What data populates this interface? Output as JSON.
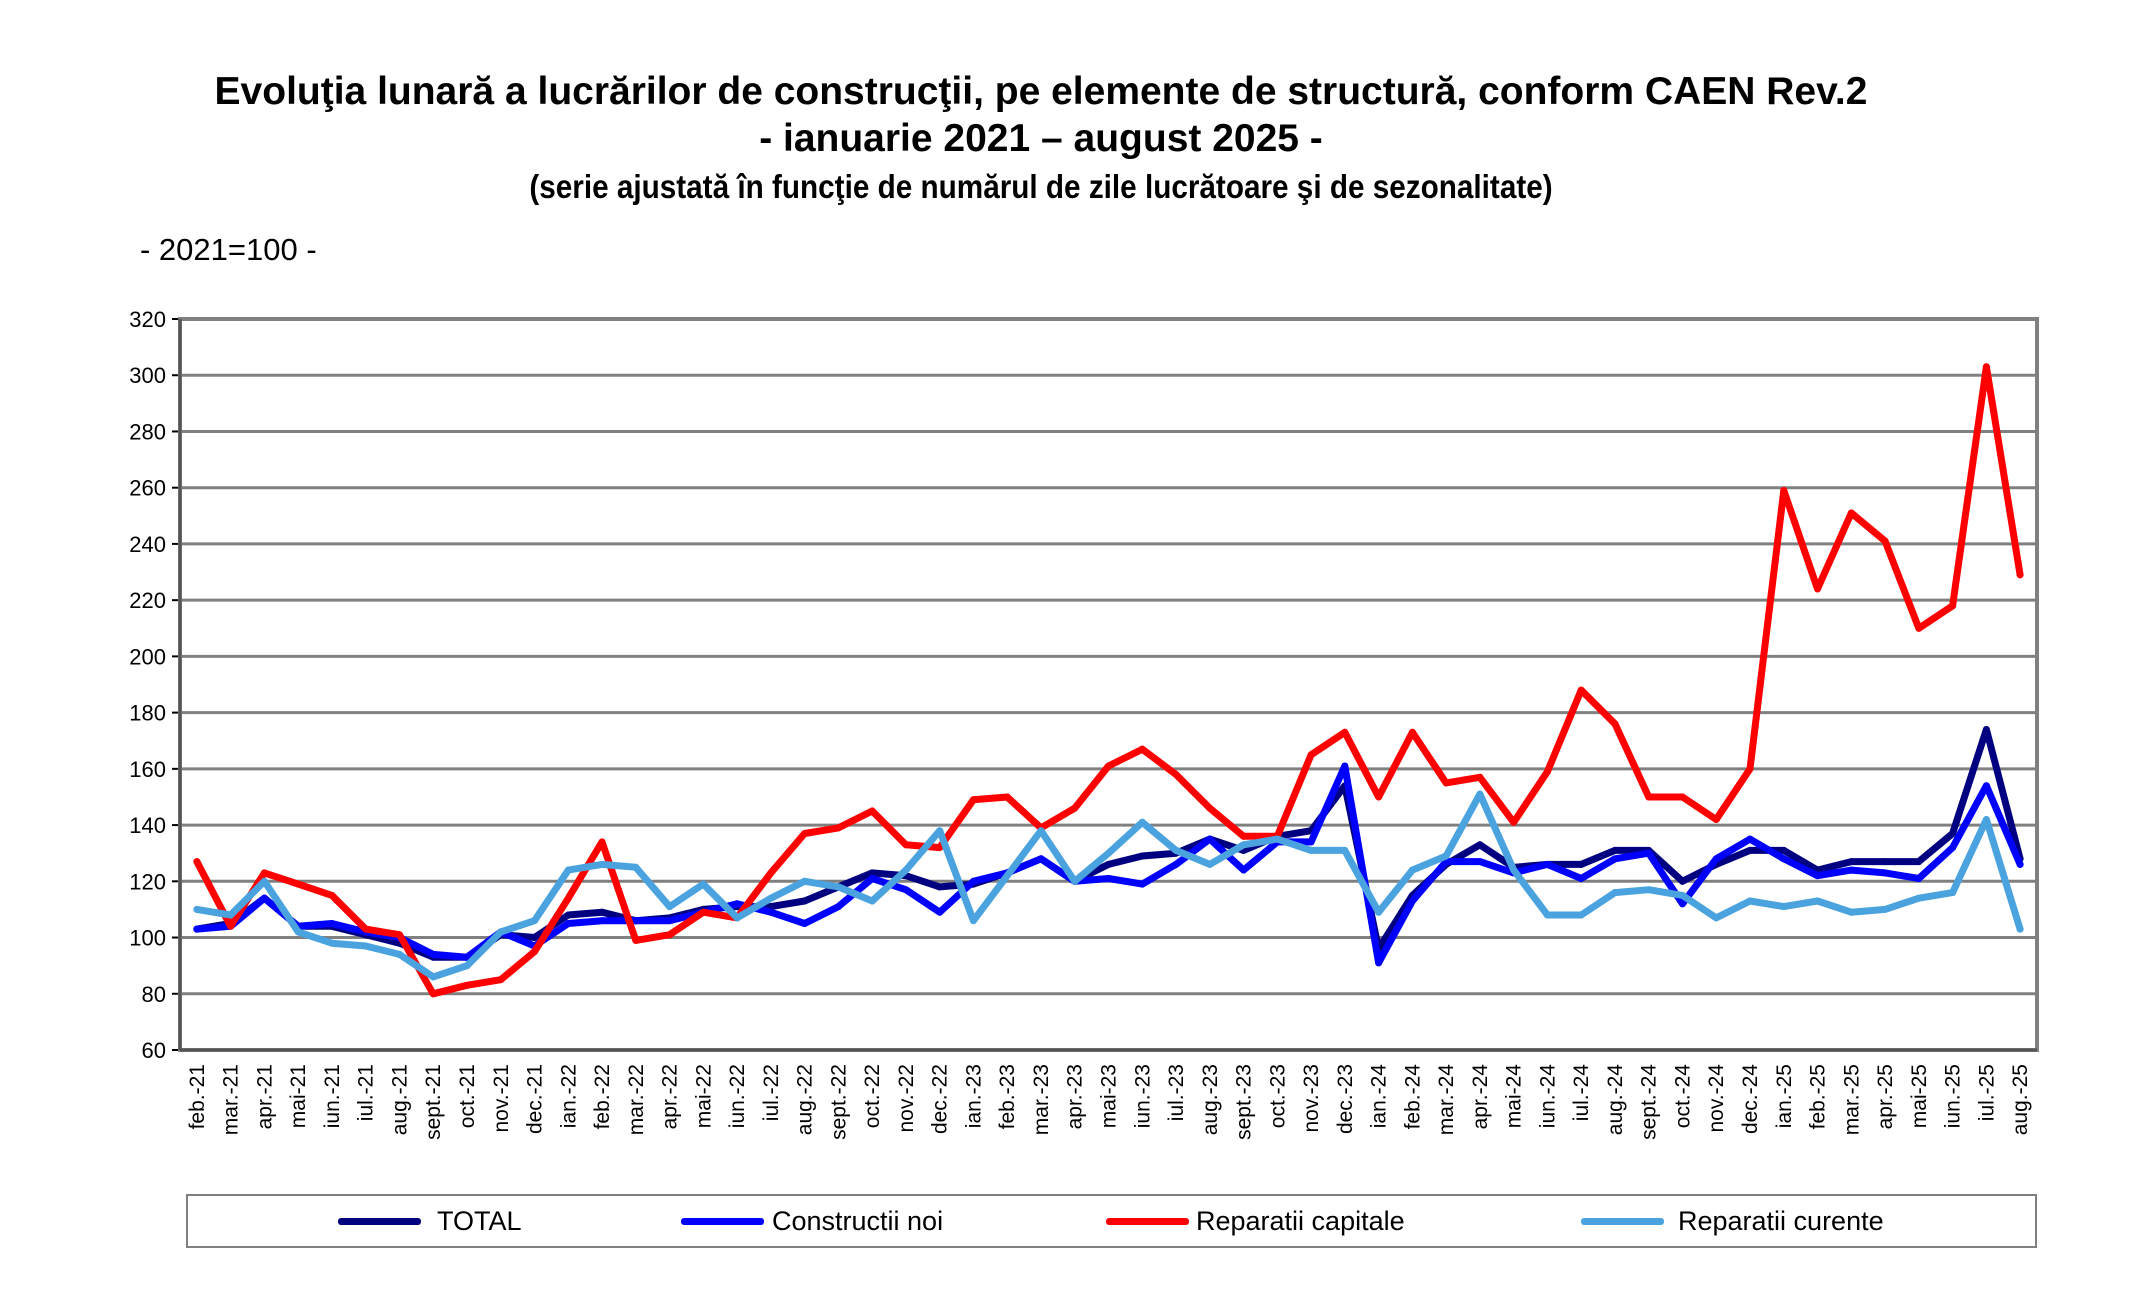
{
  "chart_data": {
    "type": "line",
    "title": "Evoluţia lunară a lucrărilor de construcţii, pe elemente de structură, conform CAEN Rev.2",
    "subtitle": "- ianuarie 2021 – august 2025 -",
    "subtitle2": "(serie ajustată în funcţie de numărul de zile lucrătoare şi de sezonalitate)",
    "base_note": "- 2021=100 -",
    "xlabel": "",
    "ylabel": "",
    "ylim": [
      60,
      320
    ],
    "yticks": [
      60,
      80,
      100,
      120,
      140,
      160,
      180,
      200,
      220,
      240,
      260,
      280,
      300,
      320
    ],
    "grid": true,
    "legend_position": "bottom",
    "categories": [
      "feb.-21",
      "mar.-21",
      "apr.-21",
      "mai-21",
      "iun.-21",
      "iul.-21",
      "aug.-21",
      "sept.-21",
      "oct.-21",
      "nov.-21",
      "dec.-21",
      "ian.-22",
      "feb.-22",
      "mar.-22",
      "apr.-22",
      "mai-22",
      "iun.-22",
      "iul.-22",
      "aug.-22",
      "sept.-22",
      "oct.-22",
      "nov.-22",
      "dec.-22",
      "ian.-23",
      "feb.-23",
      "mar.-23",
      "apr.-23",
      "mai-23",
      "iun.-23",
      "iul.-23",
      "aug.-23",
      "sept.-23",
      "oct.-23",
      "nov.-23",
      "dec.-23",
      "ian.-24",
      "feb.-24",
      "mar.-24",
      "apr.-24",
      "mai-24",
      "iun.-24",
      "iul.-24",
      "aug.-24",
      "sept.-24",
      "oct.-24",
      "nov.-24",
      "dec.-24",
      "ian.-25",
      "feb.-25",
      "mar.-25",
      "apr.-25",
      "mai-25",
      "iun.-25",
      "iul.-25",
      "aug.-25"
    ],
    "series": [
      {
        "name": "TOTAL",
        "color": "#000080",
        "values": [
          103,
          105,
          114,
          104,
          104,
          101,
          98,
          93,
          93,
          101,
          100,
          108,
          109,
          106,
          107,
          110,
          111,
          111,
          113,
          118,
          123,
          122,
          118,
          119,
          123,
          128,
          120,
          126,
          129,
          130,
          135,
          131,
          136,
          138,
          154,
          96,
          115,
          126,
          133,
          125,
          126,
          126,
          131,
          131,
          120,
          126,
          131,
          131,
          124,
          127,
          127,
          127,
          137,
          174,
          128
        ]
      },
      {
        "name": "Constructii noi",
        "color": "#0000FF",
        "values": [
          103,
          104,
          114,
          104,
          105,
          102,
          100,
          94,
          93,
          102,
          97,
          105,
          106,
          106,
          106,
          109,
          112,
          109,
          105,
          111,
          121,
          117,
          109,
          120,
          123,
          128,
          120,
          121,
          119,
          126,
          135,
          124,
          134,
          134,
          161,
          91,
          113,
          127,
          127,
          123,
          126,
          121,
          128,
          130,
          112,
          128,
          135,
          128,
          122,
          124,
          123,
          121,
          132,
          154,
          126
        ]
      },
      {
        "name": "Reparatii capitale",
        "color": "#FF0000",
        "values": [
          127,
          104,
          123,
          119,
          115,
          103,
          101,
          80,
          83,
          85,
          95,
          114,
          134,
          99,
          101,
          109,
          107,
          123,
          137,
          139,
          145,
          133,
          132,
          149,
          150,
          139,
          146,
          161,
          167,
          158,
          146,
          136,
          136,
          165,
          173,
          150,
          173,
          155,
          157,
          141,
          159,
          188,
          176,
          150,
          150,
          142,
          160,
          259,
          224,
          251,
          241,
          210,
          218,
          303,
          229
        ]
      },
      {
        "name": "Reparatii curente",
        "color": "#4AA3DF",
        "values": [
          110,
          108,
          120,
          102,
          98,
          97,
          94,
          86,
          90,
          102,
          106,
          124,
          126,
          125,
          111,
          119,
          107,
          114,
          120,
          118,
          113,
          124,
          138,
          106,
          122,
          138,
          120,
          130,
          141,
          131,
          126,
          133,
          135,
          131,
          131,
          109,
          124,
          129,
          151,
          124,
          108,
          108,
          116,
          117,
          115,
          107,
          113,
          111,
          113,
          109,
          110,
          114,
          116,
          142,
          103
        ]
      }
    ]
  }
}
